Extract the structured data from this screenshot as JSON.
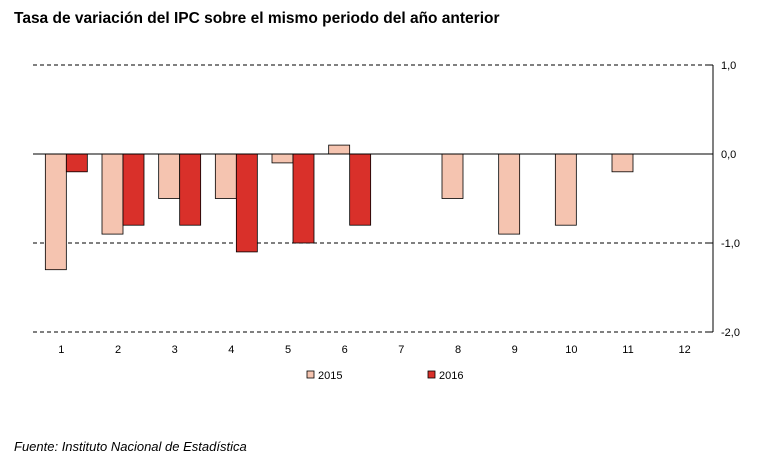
{
  "chart_data": {
    "type": "bar",
    "title": "Tasa de variación del IPC sobre el mismo periodo del año anterior",
    "categories": [
      "1",
      "2",
      "3",
      "4",
      "5",
      "6",
      "7",
      "8",
      "9",
      "10",
      "11",
      "12"
    ],
    "series": [
      {
        "name": "2015",
        "color": "#f5c4b0",
        "values": [
          -1.3,
          -0.9,
          -0.5,
          -0.5,
          -0.1,
          0.1,
          null,
          -0.5,
          -0.9,
          -0.8,
          -0.2,
          null
        ]
      },
      {
        "name": "2016",
        "color": "#d9302a",
        "values": [
          -0.2,
          -0.8,
          -0.8,
          -1.1,
          -1.0,
          -0.8,
          null,
          null,
          null,
          null,
          null,
          null
        ]
      }
    ],
    "ylim": [
      -2.0,
      1.0
    ],
    "yticks": [
      "1,0",
      "0,0",
      "-1,0",
      "-2,0"
    ],
    "ytick_values": [
      1.0,
      0.0,
      -1.0,
      -2.0
    ],
    "grid": true,
    "legend_position": "bottom",
    "xlabel": "",
    "ylabel": ""
  },
  "source": "Fuente: Instituto Nacional de Estadística"
}
